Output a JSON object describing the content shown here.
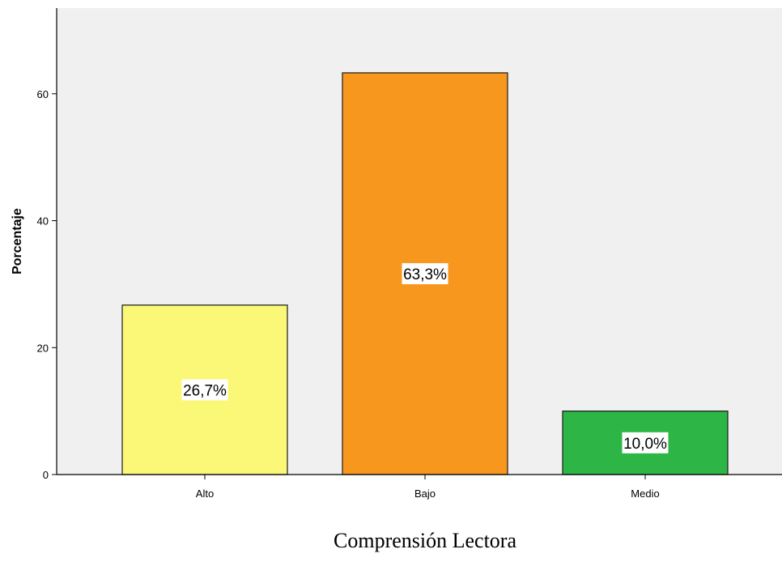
{
  "chart_data": {
    "type": "bar",
    "title": "",
    "xlabel": "Comprensión Lectora",
    "ylabel": "Porcentaje",
    "categories": [
      "Alto",
      "Bajo",
      "Medio"
    ],
    "values": [
      26.7,
      63.3,
      10.0
    ],
    "data_labels": [
      "26,7%",
      "63,3%",
      "10,0%"
    ],
    "colors": [
      "#fbf877",
      "#f7971e",
      "#2db546"
    ],
    "ylim": [
      0,
      73.5
    ],
    "yticks": [
      0,
      20,
      40,
      60
    ],
    "ytick_labels": [
      "0",
      "20",
      "40",
      "60"
    ],
    "grid": false,
    "plot_background": "#f0f0f0"
  }
}
